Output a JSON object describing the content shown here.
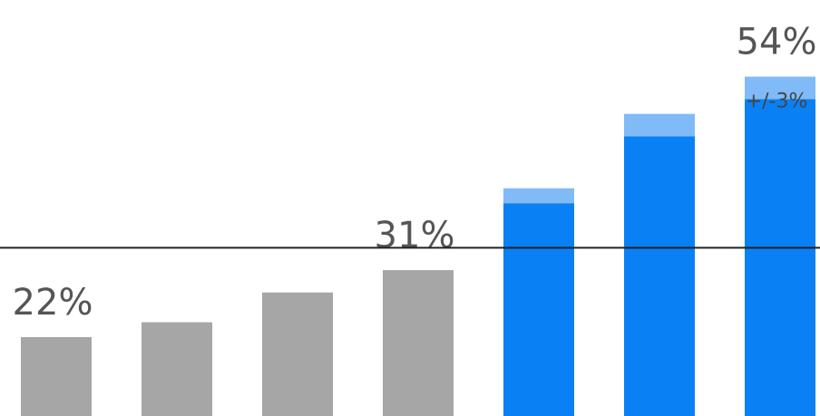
{
  "chart_data": {
    "type": "bar",
    "categories": [
      null,
      null,
      null,
      null,
      null,
      null,
      null
    ],
    "values": [
      22,
      24,
      28,
      31,
      40,
      49,
      54
    ],
    "value_labels": [
      "22%",
      null,
      null,
      "31%",
      null,
      null,
      "54%"
    ],
    "errors": [
      null,
      null,
      null,
      null,
      2,
      3,
      3
    ],
    "error_labels": [
      null,
      null,
      null,
      null,
      null,
      null,
      "+/-3%"
    ],
    "colors": [
      "#a6a6a6",
      "#a6a6a6",
      "#a6a6a6",
      "#a6a6a6",
      "#0a80f5",
      "#0a80f5",
      "#0a80f5"
    ],
    "error_color": "#80bbf7",
    "reference_line": 34,
    "ylim": [
      11.4,
      67.3
    ]
  }
}
